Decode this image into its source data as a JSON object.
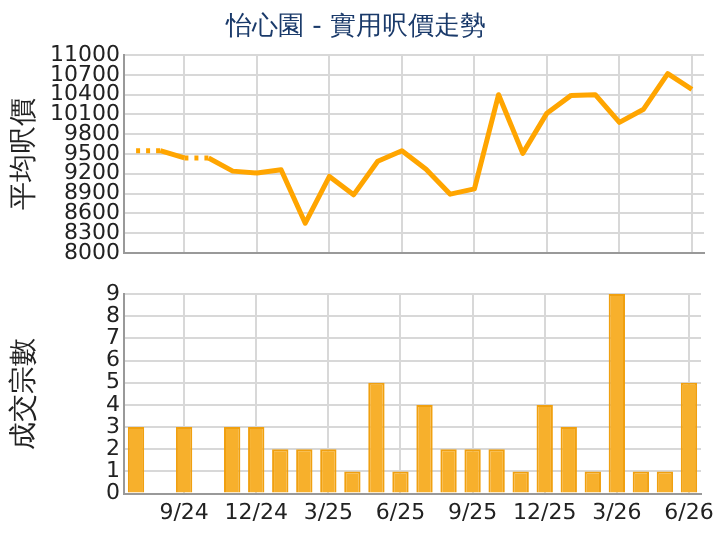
{
  "chart_data": [
    {
      "type": "line",
      "title": "怡心園 - 實用呎價走勢",
      "ylabel": "平均呎價",
      "categories": [
        null,
        null,
        null,
        null,
        null,
        null,
        null,
        null,
        null,
        null,
        null,
        null,
        null,
        null,
        null,
        null,
        null,
        null,
        null,
        null,
        null,
        null,
        null,
        null
      ],
      "series": [
        {
          "color": "#ffa500",
          "line_style": "dotted",
          "values": [
            9550,
            9550,
            null,
            null,
            null,
            null,
            null,
            null,
            null,
            null,
            null,
            null,
            null,
            null,
            null,
            null,
            null,
            null,
            null,
            null,
            null,
            null,
            null,
            null
          ]
        },
        {
          "color": "#ffa500",
          "line_style": "solid",
          "values": [
            null,
            9550,
            9440,
            null,
            null,
            null,
            null,
            null,
            null,
            null,
            null,
            null,
            null,
            null,
            null,
            null,
            null,
            null,
            null,
            null,
            null,
            null,
            null,
            null
          ]
        },
        {
          "color": "#ffa500",
          "line_style": "dotted",
          "values": [
            null,
            null,
            9440,
            9440,
            null,
            null,
            null,
            null,
            null,
            null,
            null,
            null,
            null,
            null,
            null,
            null,
            null,
            null,
            null,
            null,
            null,
            null,
            null,
            null
          ]
        },
        {
          "color": "#ffa500",
          "line_style": "solid",
          "values": [
            null,
            null,
            null,
            9440,
            9240,
            9210,
            9260,
            8450,
            9160,
            8880,
            9390,
            9550,
            9270,
            8890,
            8970,
            10400,
            9510,
            10120,
            10390,
            10400,
            9980,
            10180,
            10720,
            10480
          ]
        }
      ],
      "ylim": [
        8000,
        11000
      ],
      "yticks": [
        8000,
        8300,
        8600,
        8900,
        9200,
        9500,
        9800,
        10100,
        10400,
        10700,
        11000
      ],
      "grid": true,
      "legend": false,
      "marker": "none",
      "tick_labels": "y"
    },
    {
      "type": "bar",
      "ylabel": "成交宗數",
      "categories": [
        null,
        null,
        "9/24",
        null,
        null,
        "12/24",
        null,
        null,
        "3/25",
        null,
        null,
        "6/25",
        null,
        null,
        "9/25",
        null,
        null,
        "12/25",
        null,
        null,
        "3/26",
        null,
        null,
        "6/26"
      ],
      "values": [
        3,
        0,
        3,
        0,
        3,
        3,
        2,
        2,
        2,
        1,
        5,
        1,
        4,
        2,
        2,
        2,
        1,
        4,
        3,
        1,
        9,
        1,
        1,
        5
      ],
      "color": "#f7b02c",
      "ylim": [
        0,
        9
      ],
      "yticks": [
        0,
        1,
        2,
        3,
        4,
        5,
        6,
        7,
        8,
        9
      ],
      "grid": true,
      "legend": false
    }
  ]
}
